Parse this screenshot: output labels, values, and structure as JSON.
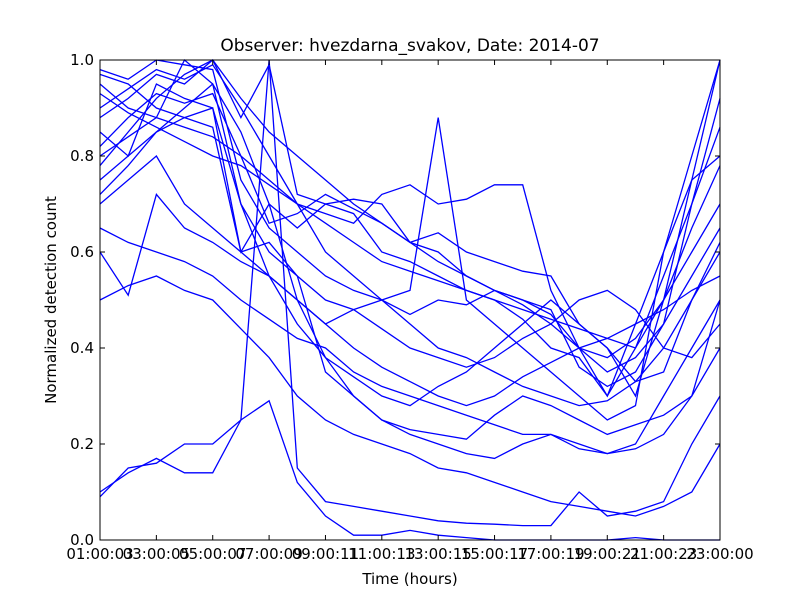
{
  "chart_data": {
    "type": "line",
    "title": "Observer: hvezdarna_svakov, Date: 2014-07",
    "xlabel": "Time (hours)",
    "ylabel": "Normalized detection count",
    "x_tick_labels": [
      "01:00:00",
      "03:00:00",
      "05:00:00",
      "07:00:00",
      "09:00:00",
      "11:00:00",
      "13:00:00",
      "15:00:00",
      "17:00:00",
      "19:00:00",
      "21:00:00",
      "23:00:00"
    ],
    "x_tick_hours": [
      1,
      3,
      5,
      7,
      9,
      11,
      13,
      15,
      17,
      19,
      21,
      23
    ],
    "x_tick_labels_overlap": [
      "01:00:03",
      "03:00:05",
      "05:00:07",
      "07:00:09",
      "09:00:11",
      "11:00:13",
      "13:00:15",
      "15:00:17",
      "17:00:19",
      "19:00:21",
      "21:00:23",
      "23:00:00"
    ],
    "y_tick_labels": [
      "0.0",
      "0.2",
      "0.4",
      "0.6",
      "0.8",
      "1.0"
    ],
    "y_ticks": [
      0,
      0.2,
      0.4,
      0.6,
      0.8,
      1.0
    ],
    "xlim": [
      1,
      23
    ],
    "ylim": [
      0,
      1.0
    ],
    "grid": false,
    "line_color": "#0000ff",
    "series": [
      {
        "x": [
          1,
          2,
          3,
          4,
          5,
          6,
          7,
          8,
          9,
          10,
          11,
          12,
          13,
          14,
          15,
          16,
          17,
          18,
          19,
          20,
          21,
          22,
          23
        ],
        "values": [
          0.78,
          0.85,
          0.92,
          0.97,
          1.0,
          0.88,
          0.99,
          0.72,
          0.7,
          0.68,
          0.6,
          0.58,
          0.55,
          0.52,
          0.5,
          0.46,
          0.4,
          0.38,
          0.3,
          0.4,
          0.55,
          0.7,
          0.86
        ]
      },
      {
        "x": [
          1,
          2,
          3,
          4,
          5,
          6,
          7,
          8,
          9,
          10,
          11,
          12,
          13,
          14,
          15,
          16,
          17,
          18,
          19,
          20,
          21,
          22,
          23
        ],
        "values": [
          0.95,
          0.9,
          0.88,
          1.0,
          0.95,
          0.7,
          0.6,
          0.55,
          0.35,
          0.3,
          0.25,
          0.22,
          0.2,
          0.18,
          0.17,
          0.2,
          0.22,
          0.19,
          0.18,
          0.19,
          0.22,
          0.3,
          0.5
        ]
      },
      {
        "x": [
          1,
          2,
          3,
          4,
          5,
          6,
          7,
          8,
          9,
          10,
          11,
          12,
          13,
          14,
          15,
          16,
          17,
          18,
          19,
          20,
          21,
          22,
          23
        ],
        "values": [
          0.1,
          0.14,
          0.17,
          0.14,
          0.14,
          0.25,
          1.0,
          0.15,
          0.08,
          0.07,
          0.06,
          0.05,
          0.04,
          0.035,
          0.033,
          0.03,
          0.03,
          0.1,
          0.05,
          0.06,
          0.08,
          0.2,
          0.3
        ]
      },
      {
        "x": [
          1,
          2,
          3,
          4,
          5,
          6,
          7,
          8,
          9,
          10,
          11,
          12,
          13,
          14,
          15,
          16,
          17,
          18,
          19,
          20,
          21,
          22,
          23
        ],
        "values": [
          0.09,
          0.15,
          0.16,
          0.2,
          0.2,
          0.25,
          0.29,
          0.12,
          0.05,
          0.01,
          0.01,
          0.02,
          0.01,
          0.005,
          0.0,
          0.0,
          0.0,
          0.0,
          0.0,
          0.005,
          0.0,
          0.0,
          0.0
        ]
      },
      {
        "x": [
          1,
          2,
          3,
          4,
          5,
          6,
          7,
          8,
          9,
          10,
          11,
          12,
          13,
          14,
          15,
          16,
          17,
          18,
          19,
          20,
          21,
          22,
          23
        ],
        "values": [
          0.5,
          0.53,
          0.55,
          0.52,
          0.5,
          0.44,
          0.38,
          0.3,
          0.25,
          0.22,
          0.2,
          0.18,
          0.15,
          0.14,
          0.12,
          0.1,
          0.08,
          0.07,
          0.06,
          0.05,
          0.07,
          0.1,
          0.2
        ]
      },
      {
        "x": [
          1,
          2,
          3,
          4,
          5,
          6,
          7,
          8,
          9,
          10,
          11,
          12,
          13,
          14,
          15,
          16,
          17,
          18,
          19,
          20,
          21,
          22,
          23
        ],
        "values": [
          0.85,
          0.8,
          0.95,
          0.92,
          0.9,
          0.6,
          0.7,
          0.65,
          0.7,
          0.71,
          0.7,
          0.62,
          0.6,
          0.55,
          0.52,
          0.49,
          0.45,
          0.4,
          0.35,
          0.38,
          0.45,
          0.55,
          0.65
        ]
      },
      {
        "x": [
          1,
          2,
          3,
          4,
          5,
          6,
          7,
          8,
          9,
          10,
          11,
          12,
          13,
          14,
          15,
          16,
          17,
          18,
          19,
          20,
          21,
          22,
          23
        ],
        "values": [
          0.9,
          0.94,
          0.98,
          0.96,
          0.99,
          0.9,
          0.8,
          0.7,
          0.6,
          0.55,
          0.5,
          0.45,
          0.4,
          0.38,
          0.35,
          0.32,
          0.3,
          0.28,
          0.29,
          0.33,
          0.4,
          0.5,
          0.6
        ]
      },
      {
        "x": [
          1,
          2,
          3,
          4,
          5,
          6,
          7,
          8,
          9,
          10,
          11,
          12,
          13,
          14,
          15,
          16,
          17,
          18,
          19,
          20,
          21,
          22,
          23
        ],
        "values": [
          0.6,
          0.51,
          0.72,
          0.65,
          0.62,
          0.58,
          0.55,
          0.5,
          0.45,
          0.4,
          0.36,
          0.33,
          0.3,
          0.28,
          0.3,
          0.34,
          0.37,
          0.4,
          0.42,
          0.45,
          0.48,
          0.52,
          0.55
        ]
      },
      {
        "x": [
          1,
          2,
          3,
          4,
          5,
          6,
          7,
          8,
          9,
          10,
          11,
          12,
          13,
          14,
          15,
          16,
          17,
          18,
          19,
          20,
          21,
          22,
          23
        ],
        "values": [
          0.75,
          0.8,
          0.85,
          0.9,
          0.95,
          0.85,
          0.7,
          0.5,
          0.38,
          0.3,
          0.25,
          0.23,
          0.22,
          0.21,
          0.26,
          0.3,
          0.28,
          0.25,
          0.22,
          0.24,
          0.26,
          0.3,
          0.4
        ]
      },
      {
        "x": [
          1,
          2,
          3,
          4,
          5,
          6,
          7,
          8,
          9,
          10,
          11,
          12,
          13,
          14,
          15,
          16,
          17,
          18,
          19,
          20,
          21,
          22,
          23
        ],
        "values": [
          0.7,
          0.75,
          0.8,
          0.7,
          0.65,
          0.6,
          0.62,
          0.55,
          0.5,
          0.48,
          0.44,
          0.4,
          0.38,
          0.36,
          0.38,
          0.42,
          0.45,
          0.5,
          0.52,
          0.48,
          0.4,
          0.38,
          0.45
        ]
      },
      {
        "x": [
          1,
          2,
          3,
          4,
          5,
          6,
          7,
          8,
          9,
          10,
          11,
          12,
          13,
          14,
          15,
          16,
          17,
          18,
          19,
          20,
          21,
          22,
          23
        ],
        "values": [
          0.98,
          0.96,
          1.0,
          0.99,
          0.98,
          0.75,
          0.65,
          0.6,
          0.55,
          0.52,
          0.5,
          0.47,
          0.5,
          0.49,
          0.52,
          0.5,
          0.47,
          0.4,
          0.38,
          0.42,
          0.5,
          0.6,
          0.7
        ]
      },
      {
        "x": [
          1,
          2,
          3,
          4,
          5,
          6,
          7,
          8,
          9,
          10,
          11,
          12,
          13,
          14,
          15,
          16,
          17,
          18,
          19,
          20,
          21,
          22,
          23
        ],
        "values": [
          0.82,
          0.88,
          0.93,
          0.91,
          0.93,
          0.8,
          0.66,
          0.68,
          0.72,
          0.69,
          0.66,
          0.62,
          0.64,
          0.6,
          0.58,
          0.56,
          0.55,
          0.45,
          0.4,
          0.3,
          0.5,
          0.65,
          0.78
        ]
      },
      {
        "x": [
          1,
          2,
          3,
          4,
          5,
          6,
          7,
          8,
          9,
          10,
          11,
          12,
          13,
          14,
          15,
          16,
          17,
          18,
          19,
          20,
          21,
          22,
          23
        ],
        "values": [
          0.65,
          0.62,
          0.6,
          0.58,
          0.55,
          0.5,
          0.46,
          0.42,
          0.4,
          0.35,
          0.32,
          0.3,
          0.28,
          0.26,
          0.24,
          0.22,
          0.22,
          0.2,
          0.18,
          0.2,
          0.3,
          0.4,
          0.5
        ]
      },
      {
        "x": [
          1,
          2,
          3,
          4,
          5,
          6,
          7,
          8,
          9,
          10,
          11,
          12,
          13,
          14,
          15,
          16,
          17,
          18,
          19,
          20,
          21,
          22,
          23
        ],
        "values": [
          0.88,
          0.92,
          0.97,
          0.95,
          1.0,
          0.92,
          0.85,
          0.8,
          0.75,
          0.7,
          0.66,
          0.62,
          0.58,
          0.55,
          0.52,
          0.5,
          0.48,
          0.36,
          0.32,
          0.35,
          0.45,
          0.7,
          0.92
        ]
      },
      {
        "x": [
          1,
          2,
          3,
          4,
          5,
          6,
          7,
          8,
          9,
          10,
          11,
          12,
          13,
          14,
          15,
          16,
          17,
          18,
          19,
          20,
          21,
          22,
          23
        ],
        "values": [
          0.72,
          0.78,
          0.85,
          0.88,
          0.9,
          0.7,
          0.55,
          0.45,
          0.38,
          0.34,
          0.3,
          0.28,
          0.32,
          0.35,
          0.4,
          0.45,
          0.5,
          0.45,
          0.4,
          0.33,
          0.35,
          0.5,
          0.62
        ]
      },
      {
        "x": [
          1,
          2,
          3,
          4,
          5,
          6,
          7,
          8,
          9,
          10,
          11,
          12,
          13,
          14,
          15,
          16,
          17,
          18,
          19,
          20,
          21,
          22,
          23
        ],
        "values": [
          0.93,
          0.89,
          0.86,
          0.83,
          0.8,
          0.78,
          0.74,
          0.7,
          0.66,
          0.62,
          0.58,
          0.56,
          0.54,
          0.52,
          0.5,
          0.48,
          0.46,
          0.44,
          0.42,
          0.4,
          0.5,
          0.75,
          1.0
        ]
      },
      {
        "x": [
          1,
          2,
          3,
          4,
          5,
          6,
          7,
          8,
          9,
          10,
          11,
          12,
          13,
          14,
          15,
          16,
          17,
          18,
          19,
          20,
          21,
          22,
          23
        ],
        "values": [
          0.8,
          0.84,
          0.88,
          0.86,
          0.84,
          0.8,
          0.75,
          0.7,
          0.68,
          0.66,
          0.72,
          0.74,
          0.7,
          0.71,
          0.74,
          0.74,
          0.52,
          0.4,
          0.3,
          0.45,
          0.6,
          0.75,
          0.8
        ]
      },
      {
        "x": [
          1,
          2,
          3,
          4,
          5,
          6,
          7,
          8,
          9,
          10,
          11,
          12,
          13,
          14,
          15,
          16,
          17,
          18,
          19,
          20,
          21,
          22,
          23
        ],
        "values": [
          0.97,
          0.95,
          0.9,
          0.88,
          0.86,
          0.6,
          0.55,
          0.5,
          0.45,
          0.48,
          0.5,
          0.52,
          0.88,
          0.5,
          0.45,
          0.4,
          0.35,
          0.3,
          0.25,
          0.28,
          0.6,
          0.8,
          1.0
        ]
      }
    ]
  }
}
